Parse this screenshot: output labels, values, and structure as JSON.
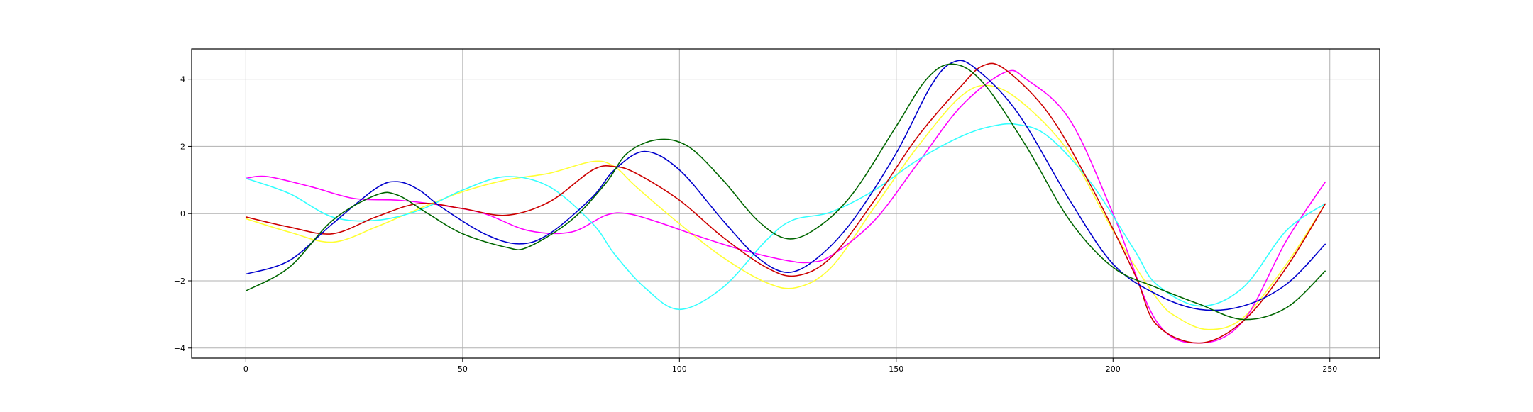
{
  "chart_data": {
    "type": "line",
    "title": "",
    "xlabel": "",
    "ylabel": "",
    "xlim": [
      -12.5,
      261.5
    ],
    "ylim": [
      -4.3,
      4.9
    ],
    "xticks": [
      0,
      50,
      100,
      150,
      200,
      250
    ],
    "yticks": [
      -4,
      -2,
      0,
      2,
      4
    ],
    "xtick_labels": [
      "0",
      "50",
      "100",
      "150",
      "200",
      "250"
    ],
    "ytick_labels": [
      "−4",
      "−2",
      "0",
      "2",
      "4"
    ],
    "grid": true,
    "series": [
      {
        "color": "#ffff33",
        "points": [
          [
            0,
            -0.15
          ],
          [
            10,
            -0.55
          ],
          [
            20,
            -0.85
          ],
          [
            30,
            -0.4
          ],
          [
            40,
            0.15
          ],
          [
            50,
            0.65
          ],
          [
            60,
            1.0
          ],
          [
            70,
            1.2
          ],
          [
            80,
            1.55
          ],
          [
            85,
            1.4
          ],
          [
            90,
            0.8
          ],
          [
            100,
            -0.3
          ],
          [
            110,
            -1.3
          ],
          [
            120,
            -2.05
          ],
          [
            127,
            -2.2
          ],
          [
            135,
            -1.6
          ],
          [
            145,
            0.2
          ],
          [
            155,
            2.0
          ],
          [
            165,
            3.5
          ],
          [
            172,
            3.8
          ],
          [
            180,
            3.2
          ],
          [
            190,
            1.8
          ],
          [
            200,
            -0.5
          ],
          [
            210,
            -2.5
          ],
          [
            215,
            -3.1
          ],
          [
            222,
            -3.45
          ],
          [
            230,
            -3.1
          ],
          [
            240,
            -1.5
          ],
          [
            249,
            0.3
          ]
        ]
      },
      {
        "color": "#ff00ff",
        "points": [
          [
            0,
            1.05
          ],
          [
            5,
            1.1
          ],
          [
            15,
            0.8
          ],
          [
            25,
            0.45
          ],
          [
            35,
            0.4
          ],
          [
            45,
            0.25
          ],
          [
            55,
            0.0
          ],
          [
            65,
            -0.5
          ],
          [
            75,
            -0.55
          ],
          [
            83,
            -0.05
          ],
          [
            88,
            0.0
          ],
          [
            95,
            -0.25
          ],
          [
            105,
            -0.7
          ],
          [
            115,
            -1.1
          ],
          [
            125,
            -1.4
          ],
          [
            130,
            -1.45
          ],
          [
            135,
            -1.25
          ],
          [
            145,
            -0.2
          ],
          [
            155,
            1.5
          ],
          [
            165,
            3.2
          ],
          [
            175,
            4.2
          ],
          [
            180,
            4.0
          ],
          [
            190,
            2.8
          ],
          [
            200,
            0.0
          ],
          [
            210,
            -3.2
          ],
          [
            220,
            -3.85
          ],
          [
            230,
            -3.2
          ],
          [
            240,
            -0.8
          ],
          [
            249,
            0.95
          ]
        ]
      },
      {
        "color": "#33ffff",
        "points": [
          [
            0,
            1.05
          ],
          [
            10,
            0.6
          ],
          [
            20,
            -0.1
          ],
          [
            30,
            -0.2
          ],
          [
            40,
            0.1
          ],
          [
            50,
            0.7
          ],
          [
            60,
            1.1
          ],
          [
            70,
            0.8
          ],
          [
            80,
            -0.3
          ],
          [
            85,
            -1.2
          ],
          [
            92,
            -2.2
          ],
          [
            100,
            -2.85
          ],
          [
            110,
            -2.2
          ],
          [
            120,
            -0.8
          ],
          [
            126,
            -0.2
          ],
          [
            135,
            0.05
          ],
          [
            145,
            0.7
          ],
          [
            155,
            1.6
          ],
          [
            165,
            2.3
          ],
          [
            172,
            2.6
          ],
          [
            178,
            2.65
          ],
          [
            185,
            2.3
          ],
          [
            195,
            0.9
          ],
          [
            205,
            -1.1
          ],
          [
            210,
            -2.1
          ],
          [
            220,
            -2.75
          ],
          [
            230,
            -2.2
          ],
          [
            240,
            -0.5
          ],
          [
            249,
            0.3
          ]
        ]
      },
      {
        "color": "#cc0000",
        "points": [
          [
            0,
            -0.1
          ],
          [
            10,
            -0.4
          ],
          [
            20,
            -0.6
          ],
          [
            30,
            -0.1
          ],
          [
            40,
            0.3
          ],
          [
            50,
            0.15
          ],
          [
            60,
            -0.05
          ],
          [
            70,
            0.35
          ],
          [
            80,
            1.3
          ],
          [
            85,
            1.4
          ],
          [
            90,
            1.2
          ],
          [
            100,
            0.4
          ],
          [
            110,
            -0.7
          ],
          [
            120,
            -1.6
          ],
          [
            127,
            -1.85
          ],
          [
            135,
            -1.3
          ],
          [
            145,
            0.4
          ],
          [
            155,
            2.3
          ],
          [
            165,
            3.8
          ],
          [
            170,
            4.4
          ],
          [
            175,
            4.3
          ],
          [
            185,
            3.0
          ],
          [
            195,
            0.8
          ],
          [
            205,
            -1.8
          ],
          [
            210,
            -3.3
          ],
          [
            220,
            -3.85
          ],
          [
            230,
            -3.2
          ],
          [
            240,
            -1.6
          ],
          [
            249,
            0.3
          ]
        ]
      },
      {
        "color": "#0000cc",
        "points": [
          [
            0,
            -1.8
          ],
          [
            10,
            -1.4
          ],
          [
            20,
            -0.3
          ],
          [
            30,
            0.75
          ],
          [
            35,
            0.95
          ],
          [
            40,
            0.7
          ],
          [
            45,
            0.2
          ],
          [
            55,
            -0.6
          ],
          [
            63,
            -0.9
          ],
          [
            70,
            -0.6
          ],
          [
            80,
            0.5
          ],
          [
            85,
            1.3
          ],
          [
            92,
            1.85
          ],
          [
            100,
            1.3
          ],
          [
            110,
            -0.2
          ],
          [
            118,
            -1.3
          ],
          [
            125,
            -1.75
          ],
          [
            132,
            -1.3
          ],
          [
            140,
            -0.2
          ],
          [
            150,
            1.8
          ],
          [
            158,
            3.8
          ],
          [
            163,
            4.5
          ],
          [
            168,
            4.35
          ],
          [
            178,
            3.0
          ],
          [
            190,
            0.4
          ],
          [
            200,
            -1.5
          ],
          [
            210,
            -2.4
          ],
          [
            220,
            -2.85
          ],
          [
            230,
            -2.75
          ],
          [
            240,
            -2.1
          ],
          [
            249,
            -0.9
          ]
        ]
      },
      {
        "color": "#006600",
        "points": [
          [
            0,
            -2.3
          ],
          [
            10,
            -1.6
          ],
          [
            20,
            -0.2
          ],
          [
            30,
            0.55
          ],
          [
            35,
            0.55
          ],
          [
            42,
            0.0
          ],
          [
            50,
            -0.6
          ],
          [
            60,
            -1.0
          ],
          [
            65,
            -1.0
          ],
          [
            75,
            -0.2
          ],
          [
            83,
            0.9
          ],
          [
            88,
            1.8
          ],
          [
            95,
            2.2
          ],
          [
            102,
            2.0
          ],
          [
            110,
            1.0
          ],
          [
            118,
            -0.2
          ],
          [
            125,
            -0.75
          ],
          [
            132,
            -0.4
          ],
          [
            140,
            0.6
          ],
          [
            150,
            2.6
          ],
          [
            157,
            4.0
          ],
          [
            163,
            4.45
          ],
          [
            170,
            3.9
          ],
          [
            180,
            2.0
          ],
          [
            190,
            -0.2
          ],
          [
            200,
            -1.6
          ],
          [
            210,
            -2.2
          ],
          [
            220,
            -2.7
          ],
          [
            230,
            -3.15
          ],
          [
            240,
            -2.8
          ],
          [
            249,
            -1.7
          ]
        ]
      }
    ]
  }
}
